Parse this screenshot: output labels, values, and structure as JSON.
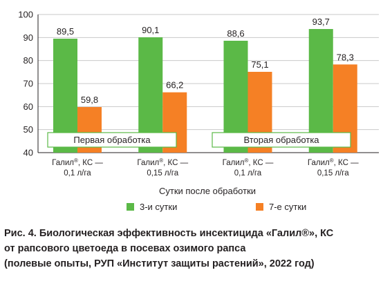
{
  "chart_data": {
    "type": "bar",
    "categories": [
      {
        "line1": "Галил",
        "sup": "®",
        "line1_rest": ", КС —",
        "line2": "0,1 л/га"
      },
      {
        "line1": "Галил",
        "sup": "®",
        "line1_rest": ", КС —",
        "line2": "0,15 л/га"
      },
      {
        "line1": "Галил",
        "sup": "®",
        "line1_rest": ", КС —",
        "line2": "0,1 л/га"
      },
      {
        "line1": "Галил",
        "sup": "®",
        "line1_rest": ", КС —",
        "line2": "0,15 л/га"
      }
    ],
    "series": [
      {
        "name": "3-и сутки",
        "color": "#5bb947",
        "values": [
          89.5,
          90.1,
          88.6,
          93.7
        ],
        "labels": [
          "89,5",
          "90,1",
          "88,6",
          "93,7"
        ]
      },
      {
        "name": "7-е сутки",
        "color": "#f58025",
        "values": [
          59.8,
          66.2,
          75.1,
          78.3
        ],
        "labels": [
          "59,8",
          "66,2",
          "75,1",
          "78,3"
        ]
      }
    ],
    "ylim": [
      40,
      100
    ],
    "yticks": [
      40,
      50,
      60,
      70,
      80,
      90,
      100
    ],
    "xlabel": "Сутки после обработки",
    "ylabel": "",
    "grid": true,
    "annotations": [
      "Первая обработка",
      "Вторая обработка"
    ],
    "legend_position": "bottom"
  },
  "caption": {
    "line1": "Рис. 4. Биологическая эффективность инсектицида «Галил®», КС",
    "line2": "от рапсового цветоеда в посевах озимого рапса",
    "line3": "(полевые опыты, РУП «Институт защиты растений», 2022 год)"
  }
}
